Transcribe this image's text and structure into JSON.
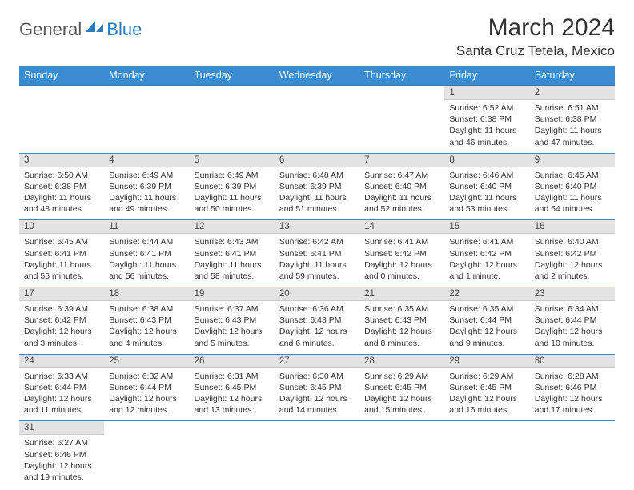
{
  "logo": {
    "general": "General",
    "blue": "Blue"
  },
  "title": "March 2024",
  "location": "Santa Cruz Tetela, Mexico",
  "colors": {
    "header_bg": "#3b8bd0",
    "header_border": "#2b7bbf",
    "daynum_bg": "#e3e3e3",
    "row_border": "#3b8bd0",
    "logo_gray": "#5a5a5a",
    "logo_blue": "#2b7bbf"
  },
  "weekdays": [
    "Sunday",
    "Monday",
    "Tuesday",
    "Wednesday",
    "Thursday",
    "Friday",
    "Saturday"
  ],
  "weeks": [
    [
      {
        "empty": true
      },
      {
        "empty": true
      },
      {
        "empty": true
      },
      {
        "empty": true
      },
      {
        "empty": true
      },
      {
        "day": "1",
        "sunrise": "Sunrise: 6:52 AM",
        "sunset": "Sunset: 6:38 PM",
        "daylight": "Daylight: 11 hours and 46 minutes."
      },
      {
        "day": "2",
        "sunrise": "Sunrise: 6:51 AM",
        "sunset": "Sunset: 6:38 PM",
        "daylight": "Daylight: 11 hours and 47 minutes."
      }
    ],
    [
      {
        "day": "3",
        "sunrise": "Sunrise: 6:50 AM",
        "sunset": "Sunset: 6:38 PM",
        "daylight": "Daylight: 11 hours and 48 minutes."
      },
      {
        "day": "4",
        "sunrise": "Sunrise: 6:49 AM",
        "sunset": "Sunset: 6:39 PM",
        "daylight": "Daylight: 11 hours and 49 minutes."
      },
      {
        "day": "5",
        "sunrise": "Sunrise: 6:49 AM",
        "sunset": "Sunset: 6:39 PM",
        "daylight": "Daylight: 11 hours and 50 minutes."
      },
      {
        "day": "6",
        "sunrise": "Sunrise: 6:48 AM",
        "sunset": "Sunset: 6:39 PM",
        "daylight": "Daylight: 11 hours and 51 minutes."
      },
      {
        "day": "7",
        "sunrise": "Sunrise: 6:47 AM",
        "sunset": "Sunset: 6:40 PM",
        "daylight": "Daylight: 11 hours and 52 minutes."
      },
      {
        "day": "8",
        "sunrise": "Sunrise: 6:46 AM",
        "sunset": "Sunset: 6:40 PM",
        "daylight": "Daylight: 11 hours and 53 minutes."
      },
      {
        "day": "9",
        "sunrise": "Sunrise: 6:45 AM",
        "sunset": "Sunset: 6:40 PM",
        "daylight": "Daylight: 11 hours and 54 minutes."
      }
    ],
    [
      {
        "day": "10",
        "sunrise": "Sunrise: 6:45 AM",
        "sunset": "Sunset: 6:41 PM",
        "daylight": "Daylight: 11 hours and 55 minutes."
      },
      {
        "day": "11",
        "sunrise": "Sunrise: 6:44 AM",
        "sunset": "Sunset: 6:41 PM",
        "daylight": "Daylight: 11 hours and 56 minutes."
      },
      {
        "day": "12",
        "sunrise": "Sunrise: 6:43 AM",
        "sunset": "Sunset: 6:41 PM",
        "daylight": "Daylight: 11 hours and 58 minutes."
      },
      {
        "day": "13",
        "sunrise": "Sunrise: 6:42 AM",
        "sunset": "Sunset: 6:41 PM",
        "daylight": "Daylight: 11 hours and 59 minutes."
      },
      {
        "day": "14",
        "sunrise": "Sunrise: 6:41 AM",
        "sunset": "Sunset: 6:42 PM",
        "daylight": "Daylight: 12 hours and 0 minutes."
      },
      {
        "day": "15",
        "sunrise": "Sunrise: 6:41 AM",
        "sunset": "Sunset: 6:42 PM",
        "daylight": "Daylight: 12 hours and 1 minute."
      },
      {
        "day": "16",
        "sunrise": "Sunrise: 6:40 AM",
        "sunset": "Sunset: 6:42 PM",
        "daylight": "Daylight: 12 hours and 2 minutes."
      }
    ],
    [
      {
        "day": "17",
        "sunrise": "Sunrise: 6:39 AM",
        "sunset": "Sunset: 6:42 PM",
        "daylight": "Daylight: 12 hours and 3 minutes."
      },
      {
        "day": "18",
        "sunrise": "Sunrise: 6:38 AM",
        "sunset": "Sunset: 6:43 PM",
        "daylight": "Daylight: 12 hours and 4 minutes."
      },
      {
        "day": "19",
        "sunrise": "Sunrise: 6:37 AM",
        "sunset": "Sunset: 6:43 PM",
        "daylight": "Daylight: 12 hours and 5 minutes."
      },
      {
        "day": "20",
        "sunrise": "Sunrise: 6:36 AM",
        "sunset": "Sunset: 6:43 PM",
        "daylight": "Daylight: 12 hours and 6 minutes."
      },
      {
        "day": "21",
        "sunrise": "Sunrise: 6:35 AM",
        "sunset": "Sunset: 6:43 PM",
        "daylight": "Daylight: 12 hours and 8 minutes."
      },
      {
        "day": "22",
        "sunrise": "Sunrise: 6:35 AM",
        "sunset": "Sunset: 6:44 PM",
        "daylight": "Daylight: 12 hours and 9 minutes."
      },
      {
        "day": "23",
        "sunrise": "Sunrise: 6:34 AM",
        "sunset": "Sunset: 6:44 PM",
        "daylight": "Daylight: 12 hours and 10 minutes."
      }
    ],
    [
      {
        "day": "24",
        "sunrise": "Sunrise: 6:33 AM",
        "sunset": "Sunset: 6:44 PM",
        "daylight": "Daylight: 12 hours and 11 minutes."
      },
      {
        "day": "25",
        "sunrise": "Sunrise: 6:32 AM",
        "sunset": "Sunset: 6:44 PM",
        "daylight": "Daylight: 12 hours and 12 minutes."
      },
      {
        "day": "26",
        "sunrise": "Sunrise: 6:31 AM",
        "sunset": "Sunset: 6:45 PM",
        "daylight": "Daylight: 12 hours and 13 minutes."
      },
      {
        "day": "27",
        "sunrise": "Sunrise: 6:30 AM",
        "sunset": "Sunset: 6:45 PM",
        "daylight": "Daylight: 12 hours and 14 minutes."
      },
      {
        "day": "28",
        "sunrise": "Sunrise: 6:29 AM",
        "sunset": "Sunset: 6:45 PM",
        "daylight": "Daylight: 12 hours and 15 minutes."
      },
      {
        "day": "29",
        "sunrise": "Sunrise: 6:29 AM",
        "sunset": "Sunset: 6:45 PM",
        "daylight": "Daylight: 12 hours and 16 minutes."
      },
      {
        "day": "30",
        "sunrise": "Sunrise: 6:28 AM",
        "sunset": "Sunset: 6:46 PM",
        "daylight": "Daylight: 12 hours and 17 minutes."
      }
    ],
    [
      {
        "day": "31",
        "sunrise": "Sunrise: 6:27 AM",
        "sunset": "Sunset: 6:46 PM",
        "daylight": "Daylight: 12 hours and 19 minutes."
      },
      {
        "empty": true
      },
      {
        "empty": true
      },
      {
        "empty": true
      },
      {
        "empty": true
      },
      {
        "empty": true
      },
      {
        "empty": true
      }
    ]
  ]
}
